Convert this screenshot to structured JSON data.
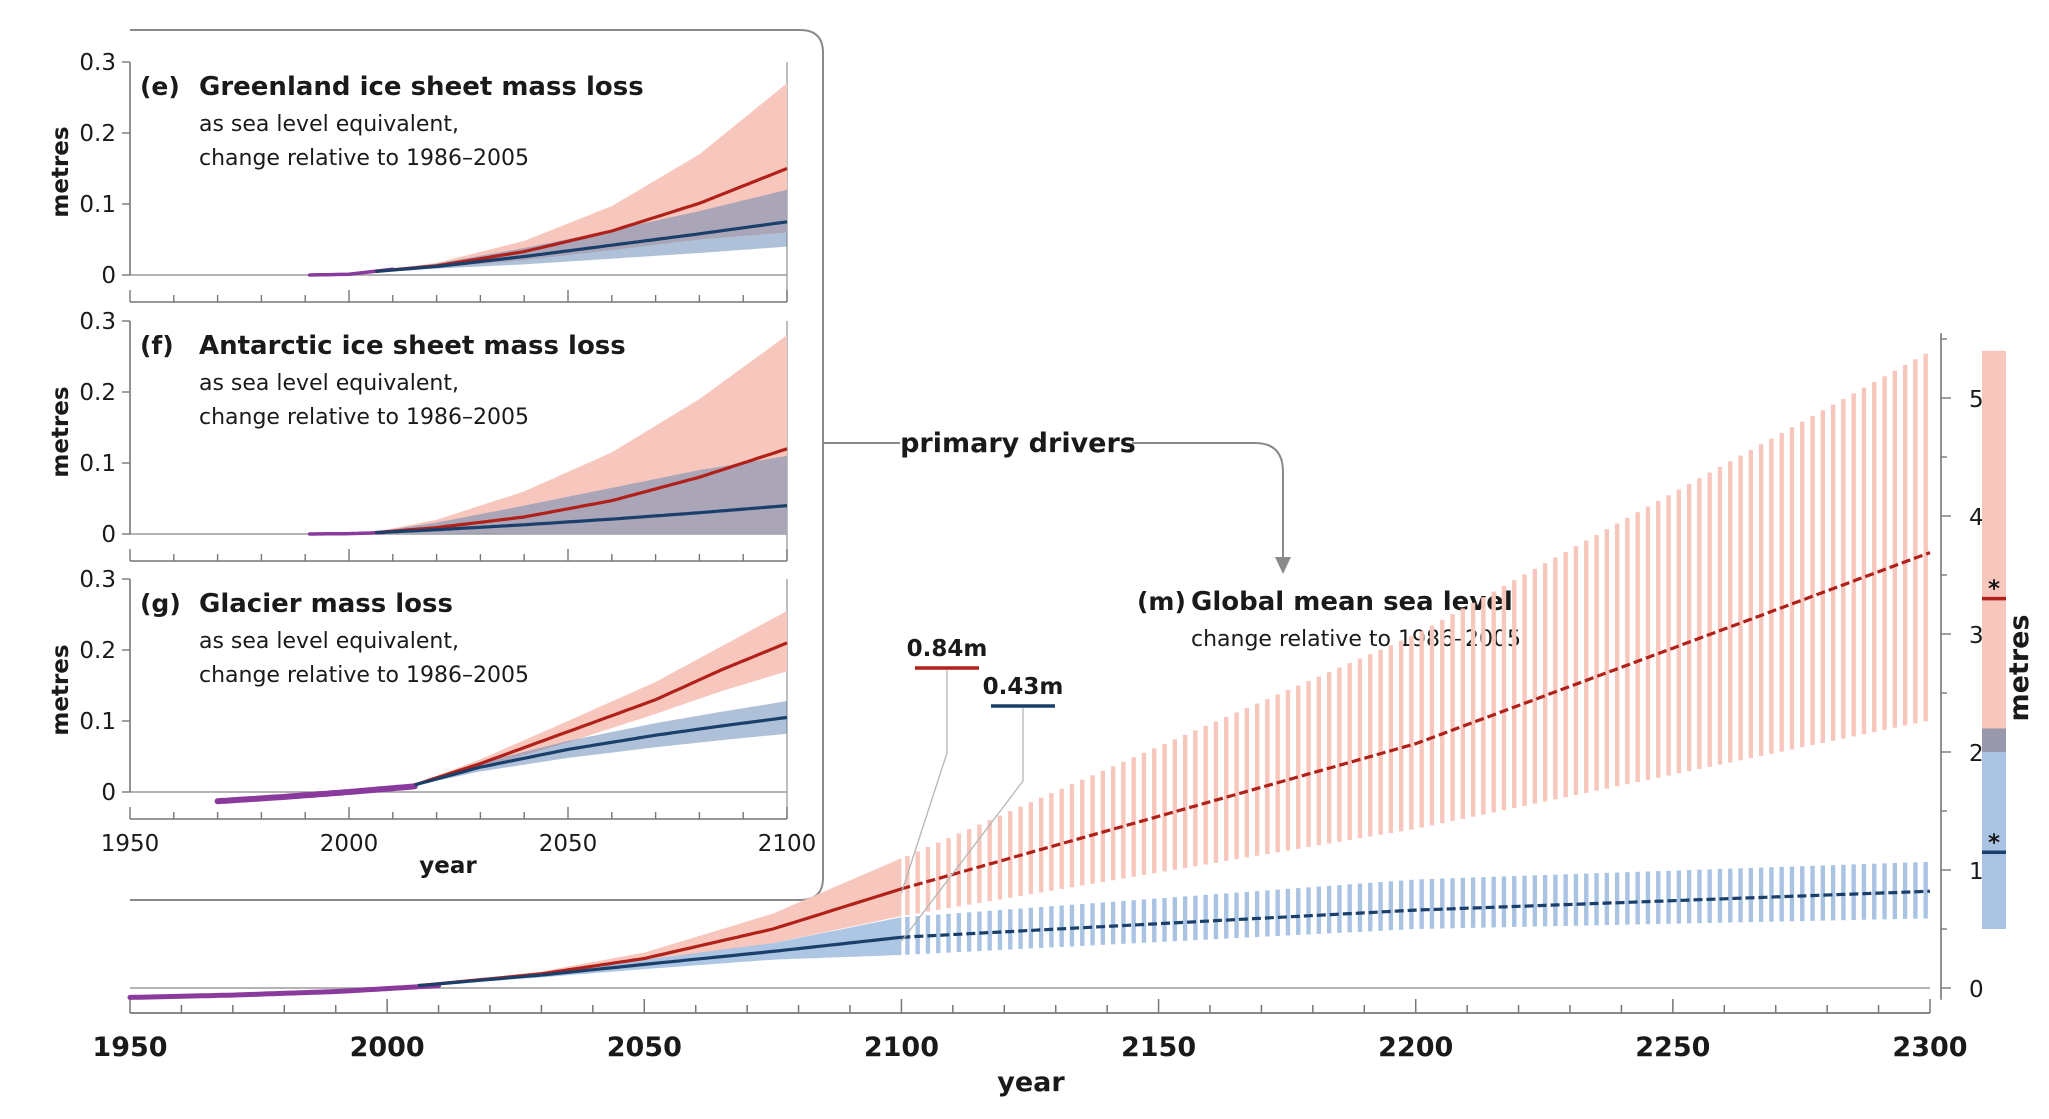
{
  "chart_data": [
    {
      "id": "e",
      "type": "line",
      "panel_letter": "(e)",
      "title": "Greenland ice sheet mass loss",
      "subtitle_lines": [
        "as sea level equivalent,",
        "change relative to 1986–2005"
      ],
      "ylabel": "metres",
      "xlim": [
        1950,
        2100
      ],
      "ylim": [
        0,
        0.3
      ],
      "yticks": [
        0,
        0.1,
        0.2,
        0.3
      ],
      "ytick_labels": [
        "0",
        "0.1",
        "0.2",
        "0.3"
      ],
      "observed": {
        "x": [
          1991,
          2000,
          2010
        ],
        "y": [
          0.0,
          0.001,
          0.008
        ]
      },
      "series": [
        {
          "scenario": "high",
          "color": "#b0211a",
          "x": [
            2006,
            2020,
            2040,
            2060,
            2080,
            2100
          ],
          "y": [
            0.005,
            0.013,
            0.033,
            0.062,
            0.101,
            0.15
          ],
          "low": [
            0.004,
            0.01,
            0.021,
            0.035,
            0.05,
            0.06
          ],
          "high": [
            0.006,
            0.017,
            0.048,
            0.097,
            0.17,
            0.27
          ]
        },
        {
          "scenario": "low",
          "color": "#1b3f6b",
          "x": [
            2006,
            2020,
            2040,
            2060,
            2080,
            2100
          ],
          "y": [
            0.005,
            0.012,
            0.026,
            0.042,
            0.058,
            0.075
          ],
          "low": [
            0.004,
            0.009,
            0.015,
            0.023,
            0.031,
            0.04
          ],
          "high": [
            0.006,
            0.016,
            0.038,
            0.063,
            0.09,
            0.12
          ]
        }
      ]
    },
    {
      "id": "f",
      "type": "line",
      "panel_letter": "(f)",
      "title": "Antarctic ice sheet mass loss",
      "subtitle_lines": [
        "as sea level equivalent,",
        "change relative to 1986–2005"
      ],
      "ylabel": "metres",
      "xlim": [
        1950,
        2100
      ],
      "ylim": [
        0,
        0.3
      ],
      "yticks": [
        0,
        0.1,
        0.2,
        0.3
      ],
      "ytick_labels": [
        "0",
        "0.1",
        "0.2",
        "0.3"
      ],
      "observed": {
        "x": [
          1991,
          2000,
          2008
        ],
        "y": [
          0.0,
          0.0005,
          0.002
        ]
      },
      "series": [
        {
          "scenario": "high",
          "color": "#b0211a",
          "x": [
            2006,
            2020,
            2040,
            2060,
            2080,
            2100
          ],
          "y": [
            0.002,
            0.009,
            0.024,
            0.047,
            0.08,
            0.12
          ],
          "low": [
            0.001,
            0.002,
            0.0,
            0.0,
            0.0,
            0.0
          ],
          "high": [
            0.003,
            0.02,
            0.06,
            0.115,
            0.19,
            0.28
          ]
        },
        {
          "scenario": "low",
          "color": "#1b3f6b",
          "x": [
            2006,
            2020,
            2040,
            2060,
            2080,
            2100
          ],
          "y": [
            0.002,
            0.006,
            0.013,
            0.021,
            0.03,
            0.04
          ],
          "low": [
            0.001,
            0.001,
            0.0,
            0.0,
            0.0,
            0.0
          ],
          "high": [
            0.003,
            0.016,
            0.04,
            0.065,
            0.09,
            0.11
          ]
        }
      ]
    },
    {
      "id": "g",
      "type": "line",
      "panel_letter": "(g)",
      "title": "Glacier mass loss",
      "subtitle_lines": [
        "as sea level equivalent,",
        "change relative to 1986–2005"
      ],
      "ylabel": "metres",
      "xlabel": "year",
      "xlim": [
        1950,
        2100
      ],
      "ylim": [
        0,
        0.3
      ],
      "yticks": [
        0,
        0.1,
        0.2,
        0.3
      ],
      "ytick_labels": [
        "0",
        "0.1",
        "0.2",
        "0.3"
      ],
      "xticks": [
        1950,
        2000,
        2050,
        2100
      ],
      "xtick_labels": [
        "1950",
        "2000",
        "2050",
        "2100"
      ],
      "observed": {
        "x": [
          1970,
          1985,
          2000,
          2015
        ],
        "y": [
          -0.013,
          -0.007,
          0.0,
          0.008
        ]
      },
      "series": [
        {
          "scenario": "high",
          "color": "#b0211a",
          "x": [
            2015,
            2030,
            2050,
            2070,
            2085,
            2100
          ],
          "y": [
            0.01,
            0.04,
            0.085,
            0.13,
            0.172,
            0.21
          ],
          "low": [
            0.009,
            0.034,
            0.07,
            0.11,
            0.142,
            0.17
          ],
          "high": [
            0.011,
            0.046,
            0.1,
            0.155,
            0.205,
            0.255
          ]
        },
        {
          "scenario": "low",
          "color": "#1b3f6b",
          "x": [
            2015,
            2030,
            2050,
            2070,
            2085,
            2100
          ],
          "y": [
            0.01,
            0.035,
            0.06,
            0.08,
            0.093,
            0.105
          ],
          "low": [
            0.009,
            0.029,
            0.048,
            0.063,
            0.073,
            0.082
          ],
          "high": [
            0.011,
            0.041,
            0.072,
            0.097,
            0.113,
            0.128
          ]
        }
      ]
    },
    {
      "id": "m",
      "type": "line",
      "panel_letter": "(m)",
      "title": "Global mean sea level",
      "subtitle_lines": [
        "change relative to 1986–2005"
      ],
      "ylabel": "metres",
      "xlabel": "year",
      "xlim": [
        1950,
        2300
      ],
      "ylim": [
        -0.1,
        5.5
      ],
      "xticks": [
        1950,
        2000,
        2050,
        2100,
        2150,
        2200,
        2250,
        2300
      ],
      "xtick_labels": [
        "1950",
        "2000",
        "2050",
        "2100",
        "2150",
        "2200",
        "2250",
        "2300"
      ],
      "yticks": [
        0,
        1,
        2,
        3,
        4,
        5
      ],
      "ytick_labels": [
        "0",
        "1",
        "2",
        "3",
        "4",
        "5"
      ],
      "observed": {
        "x": [
          1950,
          1970,
          1990,
          2010
        ],
        "y": [
          -0.08,
          -0.06,
          -0.03,
          0.02
        ]
      },
      "series": [
        {
          "scenario": "high",
          "color": "#b0211a",
          "x": [
            2006,
            2030,
            2050,
            2075,
            2100
          ],
          "y": [
            0.02,
            0.12,
            0.25,
            0.5,
            0.84
          ],
          "low": [
            0.02,
            0.1,
            0.2,
            0.38,
            0.61
          ],
          "high": [
            0.02,
            0.14,
            0.3,
            0.63,
            1.1
          ],
          "extended": {
            "x": [
              2100,
              2200,
              2300
            ],
            "y": [
              0.84,
              2.07,
              3.69
            ],
            "low": [
              0.61,
              1.35,
              2.27
            ],
            "high": [
              1.1,
              3.0,
              5.4
            ]
          }
        },
        {
          "scenario": "low",
          "color": "#1b3f6b",
          "x": [
            2006,
            2030,
            2050,
            2075,
            2100
          ],
          "y": [
            0.02,
            0.11,
            0.2,
            0.31,
            0.43
          ],
          "low": [
            0.02,
            0.09,
            0.16,
            0.24,
            0.28
          ],
          "high": [
            0.02,
            0.13,
            0.24,
            0.38,
            0.6
          ],
          "extended": {
            "x": [
              2100,
              2200,
              2300
            ],
            "y": [
              0.43,
              0.66,
              0.82
            ],
            "low": [
              0.28,
              0.5,
              0.59
            ],
            "high": [
              0.6,
              0.92,
              1.07
            ]
          }
        }
      ],
      "callouts": [
        {
          "label": "0.84m",
          "scenario": "high",
          "x": 2100,
          "y": 0.84
        },
        {
          "label": "0.43m",
          "scenario": "low",
          "x": 2100,
          "y": 0.43
        }
      ],
      "side_bar": {
        "high_range": [
          2.2,
          5.4
        ],
        "low_range": [
          0.5,
          2.0
        ],
        "high_median": 3.3,
        "low_median": 1.15,
        "marker": "*"
      }
    }
  ],
  "annotations": {
    "primary_drivers": "primary drivers"
  },
  "colors": {
    "high_band": "#f7c6bc",
    "low_band": "#a9c3e2",
    "overlap_band": "#9999ad",
    "high_line": "#b0211a",
    "low_line": "#1b3f6b",
    "observed": "#8a3a9c",
    "axis": "#777777"
  }
}
